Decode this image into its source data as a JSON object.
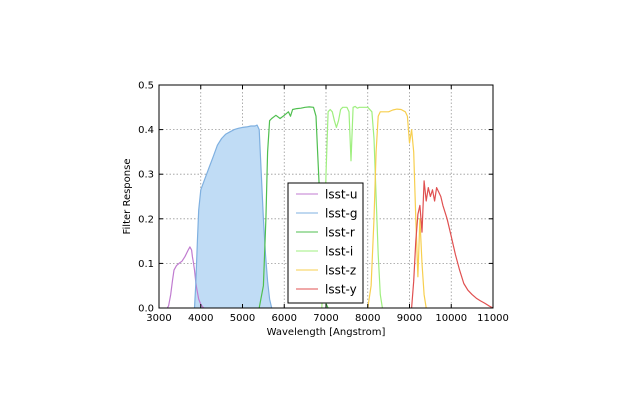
{
  "chart_data": {
    "type": "line",
    "title": "",
    "xlabel": "Wavelength [Angstrom]",
    "ylabel": "Filter Response",
    "xlim": [
      3000,
      11000
    ],
    "ylim": [
      0,
      0.5
    ],
    "xticks": [
      3000,
      4000,
      5000,
      6000,
      7000,
      8000,
      9000,
      10000,
      11000
    ],
    "yticks": [
      0.0,
      0.1,
      0.2,
      0.3,
      0.4,
      0.5
    ],
    "xtick_labels": [
      "3000",
      "4000",
      "5000",
      "6000",
      "7000",
      "8000",
      "9000",
      "10000",
      "11000"
    ],
    "ytick_labels": [
      "0.0",
      "0.1",
      "0.2",
      "0.3",
      "0.4",
      "0.5"
    ],
    "grid": true,
    "legend_position": "center-bottom",
    "filled_series": "lsst-g",
    "fill_color": "#c0dcf5",
    "series": [
      {
        "name": "lsst-u",
        "color": "#c07bd0",
        "x": [
          3200,
          3230,
          3280,
          3320,
          3360,
          3420,
          3480,
          3550,
          3620,
          3700,
          3740,
          3780,
          3800,
          3820,
          3850,
          3880,
          3900,
          3950,
          4000,
          4050,
          4080
        ],
        "y": [
          0.0,
          0.005,
          0.03,
          0.06,
          0.085,
          0.095,
          0.1,
          0.105,
          0.115,
          0.13,
          0.137,
          0.13,
          0.115,
          0.105,
          0.085,
          0.06,
          0.045,
          0.02,
          0.008,
          0.002,
          0.0
        ]
      },
      {
        "name": "lsst-g",
        "color": "#7fb0e0",
        "x": [
          3850,
          3880,
          3920,
          3950,
          4000,
          4100,
          4200,
          4300,
          4400,
          4500,
          4600,
          4700,
          4800,
          4900,
          5000,
          5100,
          5200,
          5300,
          5350,
          5400,
          5450,
          5500,
          5550,
          5600,
          5650,
          5700
        ],
        "y": [
          0.0,
          0.05,
          0.15,
          0.22,
          0.265,
          0.29,
          0.315,
          0.34,
          0.365,
          0.38,
          0.39,
          0.395,
          0.4,
          0.403,
          0.405,
          0.406,
          0.408,
          0.408,
          0.41,
          0.4,
          0.3,
          0.2,
          0.12,
          0.06,
          0.02,
          0.0
        ]
      },
      {
        "name": "lsst-r",
        "color": "#4fbf4f",
        "x": [
          5400,
          5500,
          5560,
          5600,
          5650,
          5700,
          5800,
          5900,
          6000,
          6100,
          6150,
          6200,
          6300,
          6400,
          6500,
          6600,
          6700,
          6760,
          6800,
          6850,
          6900,
          6950,
          7000,
          7050
        ],
        "y": [
          0.0,
          0.05,
          0.2,
          0.35,
          0.42,
          0.425,
          0.432,
          0.425,
          0.432,
          0.44,
          0.43,
          0.445,
          0.447,
          0.448,
          0.45,
          0.451,
          0.45,
          0.43,
          0.35,
          0.25,
          0.12,
          0.05,
          0.01,
          0.0
        ]
      },
      {
        "name": "lsst-i",
        "color": "#9fef7f",
        "x": [
          6900,
          6950,
          7000,
          7050,
          7100,
          7150,
          7200,
          7250,
          7300,
          7350,
          7400,
          7500,
          7550,
          7600,
          7650,
          7700,
          7750,
          7800,
          7900,
          8000,
          8100,
          8150,
          8200,
          8250,
          8300,
          8350
        ],
        "y": [
          0.0,
          0.1,
          0.3,
          0.44,
          0.445,
          0.44,
          0.42,
          0.405,
          0.42,
          0.445,
          0.45,
          0.45,
          0.44,
          0.33,
          0.45,
          0.452,
          0.448,
          0.45,
          0.45,
          0.45,
          0.44,
          0.38,
          0.25,
          0.12,
          0.03,
          0.0
        ]
      },
      {
        "name": "lsst-z",
        "color": "#f7cf4f",
        "x": [
          8000,
          8080,
          8150,
          8200,
          8250,
          8300,
          8400,
          8500,
          8600,
          8700,
          8800,
          8900,
          8950,
          9000,
          9050,
          9100,
          9150,
          9200,
          9250,
          9300,
          9350,
          9400
        ],
        "y": [
          0.0,
          0.05,
          0.2,
          0.35,
          0.43,
          0.44,
          0.44,
          0.44,
          0.444,
          0.446,
          0.445,
          0.44,
          0.43,
          0.37,
          0.4,
          0.35,
          0.2,
          0.07,
          0.2,
          0.1,
          0.03,
          0.0
        ]
      },
      {
        "name": "lsst-y",
        "color": "#e05050",
        "x": [
          9050,
          9100,
          9150,
          9200,
          9250,
          9300,
          9350,
          9400,
          9450,
          9500,
          9550,
          9600,
          9650,
          9700,
          9750,
          9800,
          9900,
          10000,
          10100,
          10200,
          10300,
          10400,
          10500,
          10600,
          10700,
          10800,
          10900,
          11000
        ],
        "y": [
          0.0,
          0.06,
          0.15,
          0.21,
          0.23,
          0.17,
          0.285,
          0.24,
          0.27,
          0.25,
          0.265,
          0.24,
          0.27,
          0.26,
          0.25,
          0.23,
          0.2,
          0.16,
          0.12,
          0.085,
          0.055,
          0.04,
          0.03,
          0.022,
          0.016,
          0.011,
          0.005,
          0.0
        ]
      }
    ]
  }
}
